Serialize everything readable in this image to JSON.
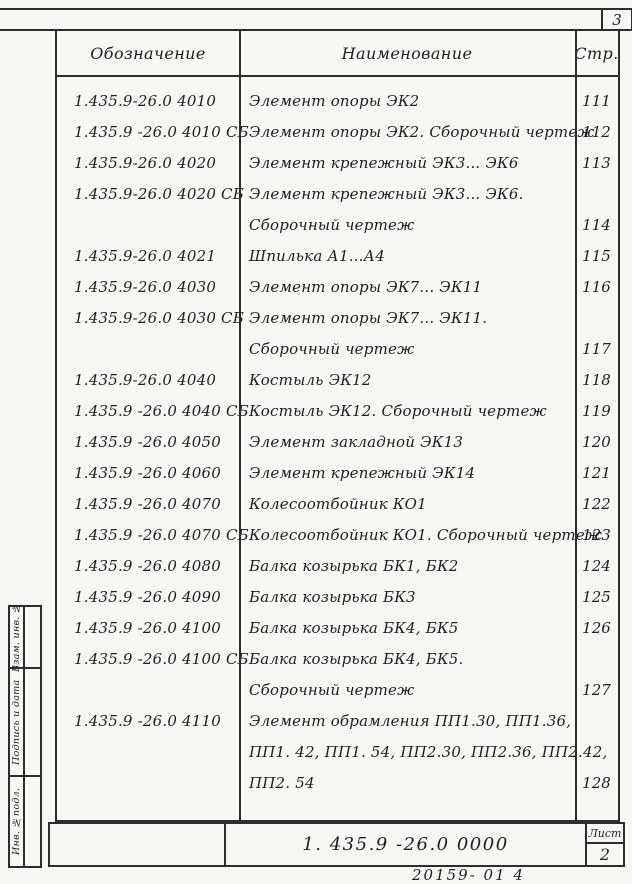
{
  "page": {
    "corner_page_number": "3",
    "footer_note": "20159- 01 4"
  },
  "table": {
    "headers": {
      "designation": "Обозначение",
      "name": "Наименование",
      "page": "Стр."
    },
    "rows": [
      {
        "designation": "1.435.9-26.0  4010",
        "name_lines": [
          "Элемент опоры ЭК2"
        ],
        "page": "111"
      },
      {
        "designation": "1.435.9 -26.0 4010 СБ",
        "name_lines": [
          "Элемент опоры ЭК2. Сборочный чертеж"
        ],
        "page": "112"
      },
      {
        "designation": "1.435.9-26.0  4020",
        "name_lines": [
          "Элемент крепежный ЭК3... ЭК6"
        ],
        "page": "113"
      },
      {
        "designation": "1.435.9-26.0 4020 СБ",
        "name_lines": [
          "Элемент крепежный ЭК3... ЭК6.",
          "Сборочный чертеж"
        ],
        "page": "114"
      },
      {
        "designation": "1.435.9-26.0  4021",
        "name_lines": [
          "Шпилька А1...А4"
        ],
        "page": "115"
      },
      {
        "designation": "1.435.9-26.0  4030",
        "name_lines": [
          "Элемент опоры ЭК7... ЭК11"
        ],
        "page": "116"
      },
      {
        "designation": "1.435.9-26.0 4030 СБ",
        "name_lines": [
          "Элемент опоры ЭК7... ЭК11.",
          "Сборочный чертеж"
        ],
        "page": "117"
      },
      {
        "designation": "1.435.9-26.0  4040",
        "name_lines": [
          "Костыль ЭК12"
        ],
        "page": "118"
      },
      {
        "designation": "1.435.9 -26.0 4040 СБ",
        "name_lines": [
          "Костыль ЭК12. Сборочный чертеж"
        ],
        "page": "119"
      },
      {
        "designation": "1.435.9 -26.0  4050",
        "name_lines": [
          "Элемент закладной ЭК13"
        ],
        "page": "120"
      },
      {
        "designation": "1.435.9 -26.0  4060",
        "name_lines": [
          "Элемент крепежный ЭК14"
        ],
        "page": "121"
      },
      {
        "designation": "1.435.9 -26.0  4070",
        "name_lines": [
          "Колесоотбойник КО1"
        ],
        "page": "122"
      },
      {
        "designation": "1.435.9 -26.0 4070 СБ",
        "name_lines": [
          "Колесоотбойник КО1.  Сборочный чертеж"
        ],
        "page": "123"
      },
      {
        "designation": "1.435.9 -26.0  4080",
        "name_lines": [
          "Балка козырька БК1, БК2"
        ],
        "page": "124"
      },
      {
        "designation": "1.435.9 -26.0  4090",
        "name_lines": [
          "Балка козырька БК3"
        ],
        "page": "125"
      },
      {
        "designation": "1.435.9 -26.0  4100",
        "name_lines": [
          "Балка козырька БК4, БК5"
        ],
        "page": "126"
      },
      {
        "designation": "1.435.9 -26.0 4100 СБ",
        "name_lines": [
          "Балка козырька БК4, БК5.",
          "Сборочный чертеж"
        ],
        "page": "127"
      },
      {
        "designation": "1.435.9 -26.0  4110",
        "name_lines": [
          "Элемент обрамления ПП1.30, ПП1.36,",
          "ПП1. 42, ПП1. 54, ПП2.30, ПП2.36, ПП2.42,",
          "ПП2. 54"
        ],
        "page": "128"
      }
    ]
  },
  "left_margin": {
    "boxes": [
      {
        "label": "Взам. инв. №"
      },
      {
        "label": "Подпись и дата"
      },
      {
        "label": "Инв. №подл."
      }
    ]
  },
  "title_block": {
    "document_number": "1. 435.9 -26.0   0000",
    "sheet_label": "Лист",
    "sheet_number": "2"
  }
}
